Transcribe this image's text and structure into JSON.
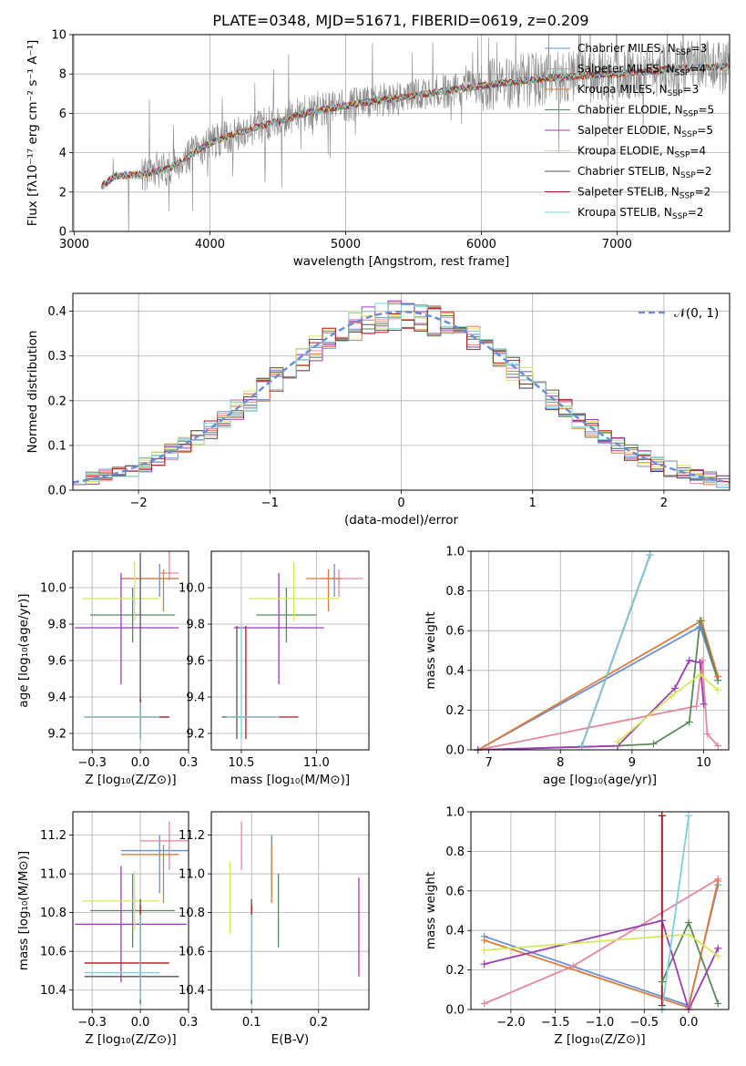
{
  "title": "PLATE=0348, MJD=51671, FIBERID=0619, z=0.209",
  "colors": {
    "chabrier_miles": "#6a8fd6",
    "salpeter_miles": "#e7879d",
    "kroupa_miles": "#e07b39",
    "chabrier_elodie": "#5a8a5a",
    "salpeter_elodie": "#9b3db5",
    "kroupa_elodie": "#d6e85a",
    "chabrier_stelib": "#555555",
    "salpeter_stelib": "#b01818",
    "kroupa_stelib": "#7fd0d8",
    "data_spectrum": "#888888",
    "gaussian": "#6a8fd6"
  },
  "models": [
    {
      "key": "chabrier_miles",
      "pre": "Chabrier MILES, N",
      "sub": "SSP",
      "post": "=3"
    },
    {
      "key": "salpeter_miles",
      "pre": "Salpeter MILES, N",
      "sub": "SSP",
      "post": "=4"
    },
    {
      "key": "kroupa_miles",
      "pre": "Kroupa MILES, N",
      "sub": "SSP",
      "post": "=3"
    },
    {
      "key": "chabrier_elodie",
      "pre": "Chabrier ELODIE, N",
      "sub": "SSP",
      "post": "=5"
    },
    {
      "key": "salpeter_elodie",
      "pre": "Salpeter ELODIE, N",
      "sub": "SSP",
      "post": "=5"
    },
    {
      "key": "kroupa_elodie",
      "pre": "Kroupa ELODIE, N",
      "sub": "SSP",
      "post": "=4"
    },
    {
      "key": "chabrier_stelib",
      "pre": "Chabrier STELIB, N",
      "sub": "SSP",
      "post": "=2"
    },
    {
      "key": "salpeter_stelib",
      "pre": "Salpeter STELIB, N",
      "sub": "SSP",
      "post": "=2"
    },
    {
      "key": "kroupa_stelib",
      "pre": "Kroupa STELIB, N",
      "sub": "SSP",
      "post": "=2"
    }
  ],
  "chart_data": [
    {
      "id": "spectrum",
      "type": "line",
      "xlabel": "wavelength [Angstrom, rest frame]",
      "ylabel": "Flux [fλ10⁻¹⁷ erg cm⁻² s⁻¹ A⁻¹]",
      "xlim": [
        2990,
        7830
      ],
      "ylim": [
        0,
        10
      ],
      "xticks": [
        3000,
        4000,
        5000,
        6000,
        7000
      ],
      "yticks": [
        0,
        2,
        4,
        6,
        8,
        10
      ],
      "data_x_range": [
        3200,
        7830
      ],
      "continuum": {
        "x": [
          3200,
          3300,
          3500,
          3700,
          4000,
          4300,
          4700,
          5000,
          5500,
          6000,
          6500,
          7000,
          7500,
          7830
        ],
        "y": [
          2.3,
          2.8,
          2.9,
          3.2,
          4.5,
          5.2,
          6.0,
          6.4,
          6.9,
          7.4,
          7.8,
          8.0,
          8.3,
          8.4
        ]
      },
      "legend_position": "upper right"
    },
    {
      "id": "residuals",
      "type": "histogram",
      "xlabel": "(data-model)/error",
      "ylabel": "Normed distribution",
      "xlim": [
        -2.5,
        2.5
      ],
      "ylim": [
        0,
        0.44
      ],
      "xticks": [
        -2,
        -1,
        0,
        1,
        2
      ],
      "yticks": [
        0.0,
        0.1,
        0.2,
        0.3,
        0.4
      ],
      "bin_width": 0.1,
      "gaussian_label": "𝒩(0, 1)",
      "legend_position": "upper right"
    },
    {
      "id": "Z-age",
      "type": "errorbar",
      "xlabel": "Z [log₁₀(Z/Z⊙)]",
      "ylabel": "age [log₁₀(age/yr)]",
      "xlim": [
        -0.35,
        0.25
      ],
      "ylim": [
        9.11,
        10.2
      ],
      "xticks": [
        -0.25,
        0.0,
        0.25
      ],
      "yticks": [
        9.2,
        9.4,
        9.6,
        9.8,
        10.0
      ],
      "points": [
        {
          "m": "chabrier_miles",
          "x": 0.1,
          "xe": [
            0.2,
            0.1
          ],
          "y": 10.05,
          "ye": [
            0.1,
            0.08
          ]
        },
        {
          "m": "salpeter_miles",
          "x": 0.15,
          "xe": [
            0.05,
            0.05
          ],
          "y": 10.08,
          "ye": [
            0.04,
            0.12
          ]
        },
        {
          "m": "kroupa_miles",
          "x": 0.12,
          "xe": [
            0.22,
            0.08
          ],
          "y": 10.05,
          "ye": [
            0.18,
            0.05
          ]
        },
        {
          "m": "chabrier_elodie",
          "x": -0.04,
          "xe": [
            0.22,
            0.22
          ],
          "y": 9.85,
          "ye": [
            0.15,
            0.15
          ]
        },
        {
          "m": "salpeter_elodie",
          "x": -0.1,
          "xe": [
            0.24,
            0.3
          ],
          "y": 9.78,
          "ye": [
            0.31,
            0.3
          ]
        },
        {
          "m": "kroupa_elodie",
          "x": -0.03,
          "xe": [
            0.27,
            0.13
          ],
          "y": 9.94,
          "ye": [
            0.12,
            0.2
          ]
        },
        {
          "m": "chabrier_stelib",
          "x": 0.0,
          "xe": [
            0.29,
            0.15
          ],
          "y": 9.29,
          "ye": [
            0.12,
            0.9
          ]
        },
        {
          "m": "salpeter_stelib",
          "x": 0.0,
          "xe": [
            0.29,
            0.15
          ],
          "y": 9.29,
          "ye": [
            0.12,
            0.1
          ]
        },
        {
          "m": "kroupa_stelib",
          "x": 0.0,
          "xe": [
            0.29,
            0.1
          ],
          "y": 9.29,
          "ye": [
            0.12,
            0.08
          ]
        }
      ]
    },
    {
      "id": "mass-age",
      "type": "errorbar",
      "xlabel": "mass [log₁₀(M/M⊙)]",
      "ylabel": "",
      "xlim": [
        10.3,
        11.35
      ],
      "ylim": [
        9.11,
        10.2
      ],
      "xticks": [
        10.5,
        11.0
      ],
      "yticks": [
        9.2,
        9.4,
        9.6,
        9.8,
        10.0
      ],
      "points": [
        {
          "m": "chabrier_miles",
          "x": 11.12,
          "xe": [
            0.06,
            0.05
          ],
          "y": 10.05,
          "ye": [
            0.1,
            0.08
          ]
        },
        {
          "m": "salpeter_miles",
          "x": 11.15,
          "xe": [
            0.12,
            0.16
          ],
          "y": 10.05,
          "ye": [
            0.1,
            0.05
          ]
        },
        {
          "m": "kroupa_miles",
          "x": 11.08,
          "xe": [
            0.15,
            0.08
          ],
          "y": 10.05,
          "ye": [
            0.18,
            0.05
          ]
        },
        {
          "m": "chabrier_elodie",
          "x": 10.8,
          "xe": [
            0.2,
            0.2
          ],
          "y": 9.85,
          "ye": [
            0.15,
            0.15
          ]
        },
        {
          "m": "salpeter_elodie",
          "x": 10.75,
          "xe": [
            0.3,
            0.3
          ],
          "y": 9.78,
          "ye": [
            0.31,
            0.3
          ]
        },
        {
          "m": "kroupa_elodie",
          "x": 10.85,
          "xe": [
            0.3,
            0.3
          ],
          "y": 9.94,
          "ye": [
            0.12,
            0.2
          ]
        },
        {
          "m": "chabrier_stelib",
          "x": 10.47,
          "xe": [
            0.1,
            0.25
          ],
          "y": 9.29,
          "ye": [
            0.12,
            0.5
          ]
        },
        {
          "m": "salpeter_stelib",
          "x": 10.53,
          "xe": [
            0.1,
            0.35
          ],
          "y": 9.29,
          "ye": [
            0.12,
            0.5
          ]
        },
        {
          "m": "kroupa_stelib",
          "x": 10.5,
          "xe": [
            0.1,
            0.25
          ],
          "y": 9.29,
          "ye": [
            0.12,
            0.5
          ]
        }
      ]
    },
    {
      "id": "age-weight",
      "type": "line",
      "xlabel": "age [log₁₀(age/yr)]",
      "ylabel": "mass weight",
      "xlim": [
        6.75,
        10.35
      ],
      "ylim": [
        0,
        1
      ],
      "xticks": [
        7,
        8,
        9,
        10
      ],
      "yticks": [
        0.0,
        0.2,
        0.4,
        0.6,
        0.8,
        1.0
      ],
      "series": [
        {
          "m": "chabrier_miles",
          "x": [
            6.85,
            9.95,
            10.2
          ],
          "y": [
            0.0,
            0.62,
            0.35
          ]
        },
        {
          "m": "salpeter_miles",
          "x": [
            6.85,
            9.9,
            9.98,
            10.05,
            10.2
          ],
          "y": [
            0.0,
            0.22,
            0.45,
            0.08,
            0.02
          ]
        },
        {
          "m": "kroupa_miles",
          "x": [
            6.85,
            9.97,
            10.2
          ],
          "y": [
            0.0,
            0.65,
            0.37
          ]
        },
        {
          "m": "chabrier_elodie",
          "x": [
            6.85,
            8.8,
            9.3,
            9.8,
            9.95,
            10.2
          ],
          "y": [
            0.0,
            0.02,
            0.03,
            0.14,
            0.65,
            0.35
          ]
        },
        {
          "m": "salpeter_elodie",
          "x": [
            6.85,
            8.8,
            9.6,
            9.8,
            9.95,
            10.0
          ],
          "y": [
            0.0,
            0.02,
            0.31,
            0.45,
            0.44,
            0.23
          ]
        },
        {
          "m": "kroupa_elodie",
          "x": [
            8.8,
            9.55,
            9.95,
            10.2
          ],
          "y": [
            0.04,
            0.27,
            0.38,
            0.3
          ]
        },
        {
          "m": "chabrier_stelib",
          "x": [
            8.3,
            9.25
          ],
          "y": [
            0.02,
            0.98
          ]
        },
        {
          "m": "salpeter_stelib",
          "x": [
            8.3,
            9.25
          ],
          "y": [
            0.02,
            0.98
          ]
        },
        {
          "m": "kroupa_stelib",
          "x": [
            8.3,
            9.25
          ],
          "y": [
            0.02,
            0.98
          ]
        }
      ]
    },
    {
      "id": "Z-mass",
      "type": "errorbar",
      "xlabel": "Z [log₁₀(Z/Z⊙)]",
      "ylabel": "mass [log₁₀(M/M⊙)]",
      "xlim": [
        -0.35,
        0.25
      ],
      "ylim": [
        10.3,
        11.32
      ],
      "xticks": [
        -0.25,
        0.0,
        0.25
      ],
      "yticks": [
        10.4,
        10.6,
        10.8,
        11.0,
        11.2
      ],
      "points": [
        {
          "m": "chabrier_miles",
          "x": 0.1,
          "xe": [
            0.2,
            0.2
          ],
          "y": 11.12,
          "ye": [
            0.22,
            0.08
          ]
        },
        {
          "m": "salpeter_miles",
          "x": 0.15,
          "xe": [
            0.15,
            0.1
          ],
          "y": 11.17,
          "ye": [
            0.15,
            0.1
          ]
        },
        {
          "m": "kroupa_miles",
          "x": 0.12,
          "xe": [
            0.22,
            0.08
          ],
          "y": 11.1,
          "ye": [
            0.25,
            0.05
          ]
        },
        {
          "m": "chabrier_elodie",
          "x": -0.04,
          "xe": [
            0.22,
            0.22
          ],
          "y": 10.81,
          "ye": [
            0.19,
            0.19
          ]
        },
        {
          "m": "salpeter_elodie",
          "x": -0.1,
          "xe": [
            0.24,
            0.34
          ],
          "y": 10.74,
          "ye": [
            0.3,
            0.3
          ]
        },
        {
          "m": "kroupa_elodie",
          "x": -0.03,
          "xe": [
            0.27,
            0.13
          ],
          "y": 10.86,
          "ye": [
            0.15,
            0.15
          ]
        },
        {
          "m": "chabrier_stelib",
          "x": 0.0,
          "xe": [
            0.29,
            0.2
          ],
          "y": 10.47,
          "ye": [
            0.14,
            0.4
          ]
        },
        {
          "m": "salpeter_stelib",
          "x": 0.0,
          "xe": [
            0.29,
            0.15
          ],
          "y": 10.54,
          "ye": [
            0.15,
            0.3
          ]
        },
        {
          "m": "kroupa_stelib",
          "x": 0.0,
          "xe": [
            0.29,
            0.1
          ],
          "y": 10.49,
          "ye": [
            0.14,
            0.3
          ]
        }
      ]
    },
    {
      "id": "ebv-mass",
      "type": "errorbar",
      "xlabel": "E(B-V)",
      "ylabel": "",
      "xlim": [
        0.04,
        0.275
      ],
      "ylim": [
        10.3,
        11.32
      ],
      "xticks": [
        0.1,
        0.2
      ],
      "yticks": [
        10.4,
        10.6,
        10.8,
        11.0,
        11.2
      ],
      "points": [
        {
          "m": "chabrier_miles",
          "x": 0.13,
          "xe": [
            0,
            0
          ],
          "y": 11.12,
          "ye": [
            0.22,
            0.08
          ]
        },
        {
          "m": "salpeter_miles",
          "x": 0.085,
          "xe": [
            0,
            0
          ],
          "y": 11.17,
          "ye": [
            0.15,
            0.1
          ]
        },
        {
          "m": "kroupa_miles",
          "x": 0.13,
          "xe": [
            0,
            0
          ],
          "y": 11.1,
          "ye": [
            0.25,
            0.05
          ]
        },
        {
          "m": "chabrier_elodie",
          "x": 0.14,
          "xe": [
            0,
            0
          ],
          "y": 10.81,
          "ye": [
            0.19,
            0.19
          ]
        },
        {
          "m": "salpeter_elodie",
          "x": 0.26,
          "xe": [
            0,
            0
          ],
          "y": 10.74,
          "ye": [
            0.27,
            0.24
          ]
        },
        {
          "m": "kroupa_elodie",
          "x": 0.068,
          "xe": [
            0,
            0
          ],
          "y": 10.86,
          "ye": [
            0.17,
            0.2
          ]
        },
        {
          "m": "chabrier_stelib",
          "x": 0.1,
          "xe": [
            0,
            0
          ],
          "y": 10.47,
          "ye": [
            0.14,
            0.4
          ]
        },
        {
          "m": "salpeter_stelib",
          "x": 0.1,
          "xe": [
            0,
            0
          ],
          "y": 10.54,
          "ye": [
            0.15,
            0.3
          ]
        },
        {
          "m": "kroupa_stelib",
          "x": 0.1,
          "xe": [
            0,
            0
          ],
          "y": 10.49,
          "ye": [
            0.14,
            0.3
          ]
        }
      ]
    },
    {
      "id": "Z-weight",
      "type": "line",
      "xlabel": "Z [log₁₀(Z/Z⊙)]",
      "ylabel": "mass weight",
      "xlim": [
        -2.45,
        0.45
      ],
      "ylim": [
        0,
        1
      ],
      "xticks": [
        -2.0,
        -1.5,
        -1.0,
        -0.5,
        0.0
      ],
      "yticks": [
        0.0,
        0.2,
        0.4,
        0.6,
        0.8,
        1.0
      ],
      "series": [
        {
          "m": "chabrier_miles",
          "x": [
            -2.3,
            0.0,
            0.33
          ],
          "y": [
            0.37,
            0.02,
            0.63
          ]
        },
        {
          "m": "salpeter_miles",
          "x": [
            -2.3,
            -1.3,
            0.33
          ],
          "y": [
            0.03,
            0.22,
            0.66
          ]
        },
        {
          "m": "kroupa_miles",
          "x": [
            -2.3,
            0.0,
            0.33
          ],
          "y": [
            0.35,
            0.01,
            0.65
          ]
        },
        {
          "m": "chabrier_elodie",
          "x": [
            -0.3,
            0.0,
            0.33
          ],
          "y": [
            0.14,
            0.44,
            0.03
          ]
        },
        {
          "m": "salpeter_elodie",
          "x": [
            -2.3,
            -0.3,
            0.0,
            0.33
          ],
          "y": [
            0.23,
            0.45,
            0.0,
            0.31
          ]
        },
        {
          "m": "kroupa_elodie",
          "x": [
            -2.3,
            0.0,
            0.33
          ],
          "y": [
            0.3,
            0.38,
            0.27
          ]
        },
        {
          "m": "chabrier_stelib",
          "x": [
            -0.3,
            -0.3
          ],
          "y": [
            0.0,
            0.98
          ]
        },
        {
          "m": "salpeter_stelib",
          "x": [
            -0.3,
            -0.3
          ],
          "y": [
            0.02,
            0.98
          ]
        },
        {
          "m": "kroupa_stelib",
          "x": [
            -0.3,
            0.0
          ],
          "y": [
            0.0,
            0.98
          ]
        }
      ]
    }
  ]
}
